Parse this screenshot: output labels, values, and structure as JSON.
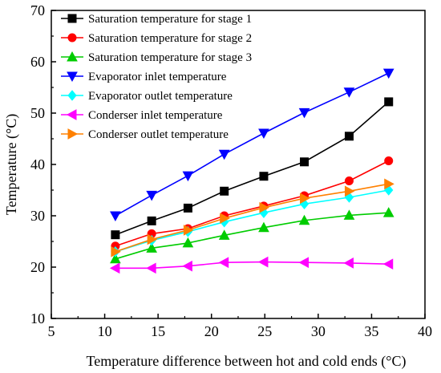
{
  "chart_data": {
    "type": "line",
    "xlabel": "Temperature difference between hot and cold ends (°C)",
    "ylabel": "Temperature (°C)",
    "xlim": [
      5,
      40
    ],
    "ylim": [
      10,
      70
    ],
    "xticks": [
      5,
      10,
      15,
      20,
      25,
      30,
      35,
      40
    ],
    "yticks": [
      10,
      20,
      30,
      40,
      50,
      60,
      70
    ],
    "grid": false,
    "legend_position": "top-left",
    "x": [
      11.0,
      14.4,
      17.8,
      21.2,
      24.9,
      28.7,
      32.9,
      36.6
    ],
    "series": [
      {
        "name": "Saturation temperature for stage 1",
        "color": "#000000",
        "marker": "square",
        "values": [
          26.3,
          29.0,
          31.5,
          34.8,
          37.7,
          40.5,
          45.5,
          52.2
        ]
      },
      {
        "name": "Saturation temperature for stage 2",
        "color": "#ff0000",
        "marker": "circle",
        "values": [
          24.1,
          26.5,
          27.5,
          30.0,
          31.9,
          33.9,
          36.8,
          40.7
        ]
      },
      {
        "name": "Saturation temperature for stage 3",
        "color": "#00cc00",
        "marker": "triangle-up",
        "values": [
          21.6,
          23.7,
          24.7,
          26.2,
          27.7,
          29.1,
          30.1,
          30.6
        ]
      },
      {
        "name": "Evaporator inlet temperature",
        "color": "#0000ff",
        "marker": "triangle-down",
        "values": [
          30.0,
          34.0,
          37.8,
          42.0,
          46.1,
          50.1,
          54.1,
          57.8
        ]
      },
      {
        "name": "Evaporator outlet temperature",
        "color": "#00ffff",
        "marker": "diamond",
        "values": [
          23.0,
          25.2,
          26.9,
          28.8,
          30.6,
          32.3,
          33.6,
          35.0
        ]
      },
      {
        "name": "Conderser inlet temperature",
        "color": "#ff00ff",
        "marker": "triangle-left",
        "values": [
          19.8,
          19.8,
          20.2,
          20.9,
          21.0,
          20.9,
          20.8,
          20.6
        ]
      },
      {
        "name": "Conderser outlet temperature",
        "color": "#ff8000",
        "marker": "triangle-right",
        "values": [
          23.0,
          25.4,
          27.2,
          29.5,
          31.6,
          33.4,
          34.8,
          36.2
        ]
      }
    ]
  }
}
